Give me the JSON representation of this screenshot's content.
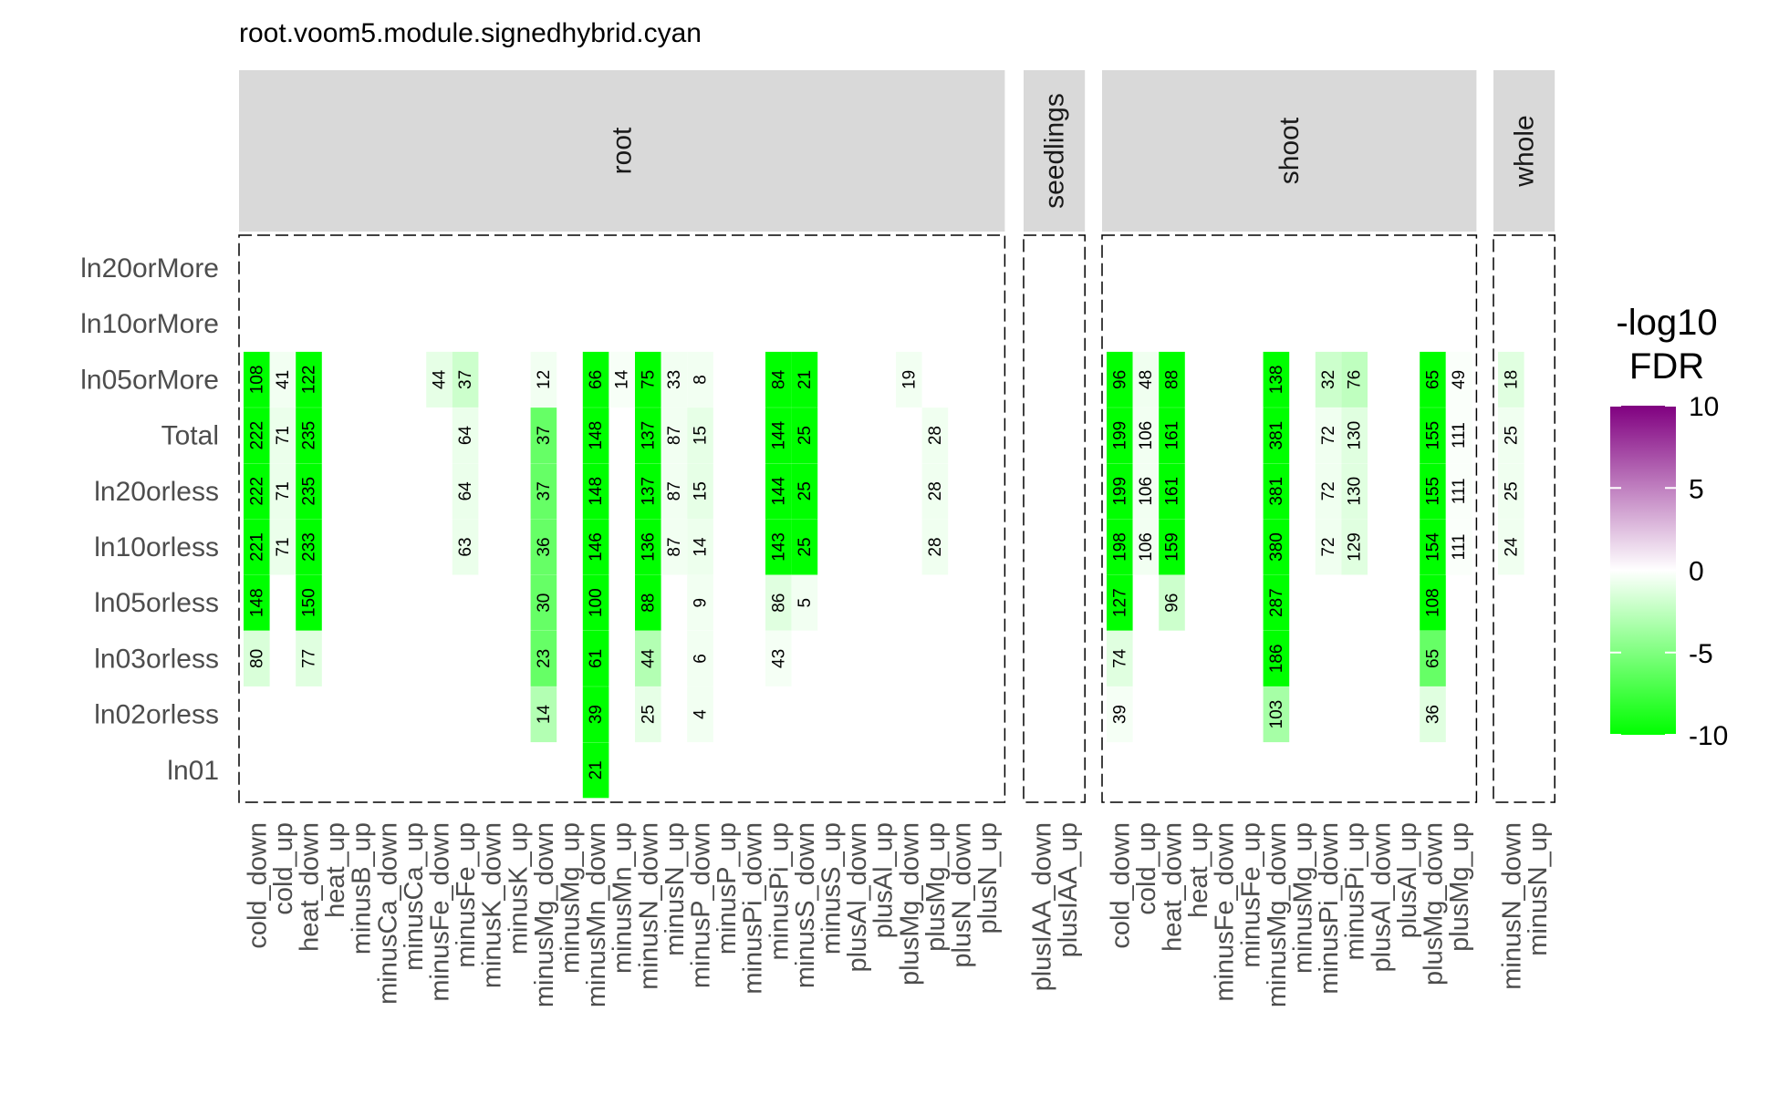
{
  "chart_data": {
    "type": "heatmap",
    "title": "root.voom5.module.signedhybrid.cyan",
    "rows": [
      "ln20orMore",
      "ln10orMore",
      "ln05orMore",
      "Total",
      "ln20orless",
      "ln10orless",
      "ln05orless",
      "ln03orless",
      "ln02orless",
      "ln01"
    ],
    "legend": {
      "title_line1": "-log10",
      "title_line2": "FDR",
      "range": [
        -10,
        10
      ],
      "ticks": [
        10,
        5,
        0,
        -5,
        -10
      ],
      "low_color": "#00ff00",
      "mid_color": "#ffffff",
      "high_color": "#800080"
    },
    "panels": [
      {
        "name": "root",
        "columns": [
          "cold_down",
          "cold_up",
          "heat_down",
          "heat_up",
          "minusB_up",
          "minusCa_down",
          "minusCa_up",
          "minusFe_down",
          "minusFe_up",
          "minusK_down",
          "minusK_up",
          "minusMg_down",
          "minusMg_up",
          "minusMn_down",
          "minusMn_up",
          "minusN_down",
          "minusN_up",
          "minusP_down",
          "minusP_up",
          "minusPi_down",
          "minusPi_up",
          "minusS_down",
          "minusS_up",
          "plusAl_down",
          "plusAl_up",
          "plusMg_down",
          "plusMg_up",
          "plusN_down",
          "plusN_up"
        ],
        "cells": [
          {
            "col": "cold_down",
            "row": "ln05orMore",
            "label": "108",
            "value": -10
          },
          {
            "col": "cold_down",
            "row": "Total",
            "label": "222",
            "value": -10
          },
          {
            "col": "cold_down",
            "row": "ln20orless",
            "label": "222",
            "value": -10
          },
          {
            "col": "cold_down",
            "row": "ln10orless",
            "label": "221",
            "value": -10
          },
          {
            "col": "cold_down",
            "row": "ln05orless",
            "label": "148",
            "value": -10
          },
          {
            "col": "cold_down",
            "row": "ln03orless",
            "label": "80",
            "value": -1.5
          },
          {
            "col": "cold_up",
            "row": "ln05orMore",
            "label": "41",
            "value": -0.5
          },
          {
            "col": "cold_up",
            "row": "Total",
            "label": "71",
            "value": -0.8
          },
          {
            "col": "cold_up",
            "row": "ln20orless",
            "label": "71",
            "value": -0.8
          },
          {
            "col": "cold_up",
            "row": "ln10orless",
            "label": "71",
            "value": -0.8
          },
          {
            "col": "heat_down",
            "row": "ln05orMore",
            "label": "122",
            "value": -10
          },
          {
            "col": "heat_down",
            "row": "Total",
            "label": "235",
            "value": -10
          },
          {
            "col": "heat_down",
            "row": "ln20orless",
            "label": "235",
            "value": -10
          },
          {
            "col": "heat_down",
            "row": "ln10orless",
            "label": "233",
            "value": -10
          },
          {
            "col": "heat_down",
            "row": "ln05orless",
            "label": "150",
            "value": -10
          },
          {
            "col": "heat_down",
            "row": "ln03orless",
            "label": "77",
            "value": -1.2
          },
          {
            "col": "minusFe_down",
            "row": "ln05orMore",
            "label": "44",
            "value": -1
          },
          {
            "col": "minusFe_up",
            "row": "ln05orMore",
            "label": "37",
            "value": -2
          },
          {
            "col": "minusFe_up",
            "row": "Total",
            "label": "64",
            "value": -0.8
          },
          {
            "col": "minusFe_up",
            "row": "ln20orless",
            "label": "64",
            "value": -0.8
          },
          {
            "col": "minusFe_up",
            "row": "ln10orless",
            "label": "63",
            "value": -0.8
          },
          {
            "col": "minusMg_down",
            "row": "ln05orMore",
            "label": "12",
            "value": -0.5
          },
          {
            "col": "minusMg_down",
            "row": "Total",
            "label": "37",
            "value": -6
          },
          {
            "col": "minusMg_down",
            "row": "ln20orless",
            "label": "37",
            "value": -6
          },
          {
            "col": "minusMg_down",
            "row": "ln10orless",
            "label": "36",
            "value": -6
          },
          {
            "col": "minusMg_down",
            "row": "ln05orless",
            "label": "30",
            "value": -6
          },
          {
            "col": "minusMg_down",
            "row": "ln03orless",
            "label": "23",
            "value": -6
          },
          {
            "col": "minusMg_down",
            "row": "ln02orless",
            "label": "14",
            "value": -3
          },
          {
            "col": "minusMn_down",
            "row": "ln05orMore",
            "label": "66",
            "value": -10
          },
          {
            "col": "minusMn_down",
            "row": "Total",
            "label": "148",
            "value": -10
          },
          {
            "col": "minusMn_down",
            "row": "ln20orless",
            "label": "148",
            "value": -10
          },
          {
            "col": "minusMn_down",
            "row": "ln10orless",
            "label": "146",
            "value": -10
          },
          {
            "col": "minusMn_down",
            "row": "ln05orless",
            "label": "100",
            "value": -10
          },
          {
            "col": "minusMn_down",
            "row": "ln03orless",
            "label": "61",
            "value": -10
          },
          {
            "col": "minusMn_down",
            "row": "ln02orless",
            "label": "39",
            "value": -10
          },
          {
            "col": "minusMn_down",
            "row": "ln01",
            "label": "21",
            "value": -10
          },
          {
            "col": "minusMn_up",
            "row": "ln05orMore",
            "label": "14",
            "value": -0.3
          },
          {
            "col": "minusN_down",
            "row": "ln05orMore",
            "label": "75",
            "value": -10
          },
          {
            "col": "minusN_down",
            "row": "Total",
            "label": "137",
            "value": -10
          },
          {
            "col": "minusN_down",
            "row": "ln20orless",
            "label": "137",
            "value": -10
          },
          {
            "col": "minusN_down",
            "row": "ln10orless",
            "label": "136",
            "value": -10
          },
          {
            "col": "minusN_down",
            "row": "ln05orless",
            "label": "88",
            "value": -10
          },
          {
            "col": "minusN_down",
            "row": "ln03orless",
            "label": "44",
            "value": -3
          },
          {
            "col": "minusN_down",
            "row": "ln02orless",
            "label": "25",
            "value": -1
          },
          {
            "col": "minusN_up",
            "row": "ln05orMore",
            "label": "33",
            "value": -0.5
          },
          {
            "col": "minusN_up",
            "row": "Total",
            "label": "87",
            "value": -0.5
          },
          {
            "col": "minusN_up",
            "row": "ln20orless",
            "label": "87",
            "value": -0.5
          },
          {
            "col": "minusN_up",
            "row": "ln10orless",
            "label": "87",
            "value": -0.5
          },
          {
            "col": "minusP_down",
            "row": "ln05orMore",
            "label": "8",
            "value": -0.5
          },
          {
            "col": "minusP_down",
            "row": "Total",
            "label": "15",
            "value": -1
          },
          {
            "col": "minusP_down",
            "row": "ln20orless",
            "label": "15",
            "value": -1
          },
          {
            "col": "minusP_down",
            "row": "ln10orless",
            "label": "14",
            "value": -0.7
          },
          {
            "col": "minusP_down",
            "row": "ln05orless",
            "label": "9",
            "value": -0.5
          },
          {
            "col": "minusP_down",
            "row": "ln03orless",
            "label": "6",
            "value": -0.5
          },
          {
            "col": "minusP_down",
            "row": "ln02orless",
            "label": "4",
            "value": -0.5
          },
          {
            "col": "minusPi_up",
            "row": "ln05orMore",
            "label": "84",
            "value": -10
          },
          {
            "col": "minusPi_up",
            "row": "Total",
            "label": "144",
            "value": -10
          },
          {
            "col": "minusPi_up",
            "row": "ln20orless",
            "label": "144",
            "value": -10
          },
          {
            "col": "minusPi_up",
            "row": "ln10orless",
            "label": "143",
            "value": -10
          },
          {
            "col": "minusPi_up",
            "row": "ln05orless",
            "label": "86",
            "value": -1.2
          },
          {
            "col": "minusPi_up",
            "row": "ln03orless",
            "label": "43",
            "value": -0.4
          },
          {
            "col": "minusS_down",
            "row": "ln05orMore",
            "label": "21",
            "value": -10
          },
          {
            "col": "minusS_down",
            "row": "Total",
            "label": "25",
            "value": -10
          },
          {
            "col": "minusS_down",
            "row": "ln20orless",
            "label": "25",
            "value": -10
          },
          {
            "col": "minusS_down",
            "row": "ln10orless",
            "label": "25",
            "value": -10
          },
          {
            "col": "minusS_down",
            "row": "ln05orless",
            "label": "5",
            "value": -0.5
          },
          {
            "col": "plusMg_down",
            "row": "ln05orMore",
            "label": "19",
            "value": -0.5
          },
          {
            "col": "plusMg_up",
            "row": "Total",
            "label": "28",
            "value": -0.6
          },
          {
            "col": "plusMg_up",
            "row": "ln20orless",
            "label": "28",
            "value": -0.6
          },
          {
            "col": "plusMg_up",
            "row": "ln10orless",
            "label": "28",
            "value": -0.6
          }
        ]
      },
      {
        "name": "seedlings",
        "columns": [
          "plusIAA_down",
          "plusIAA_up"
        ],
        "cells": []
      },
      {
        "name": "shoot",
        "columns": [
          "cold_down",
          "cold_up",
          "heat_down",
          "heat_up",
          "minusFe_down",
          "minusFe_up",
          "minusMg_down",
          "minusMg_up",
          "minusPi_down",
          "minusPi_up",
          "plusAl_down",
          "plusAl_up",
          "plusMg_down",
          "plusMg_up"
        ],
        "cells": [
          {
            "col": "cold_down",
            "row": "ln05orMore",
            "label": "96",
            "value": -10
          },
          {
            "col": "cold_down",
            "row": "Total",
            "label": "199",
            "value": -10
          },
          {
            "col": "cold_down",
            "row": "ln20orless",
            "label": "199",
            "value": -10
          },
          {
            "col": "cold_down",
            "row": "ln10orless",
            "label": "198",
            "value": -10
          },
          {
            "col": "cold_down",
            "row": "ln05orless",
            "label": "127",
            "value": -10
          },
          {
            "col": "cold_down",
            "row": "ln03orless",
            "label": "74",
            "value": -1.2
          },
          {
            "col": "cold_down",
            "row": "ln02orless",
            "label": "39",
            "value": -0.4
          },
          {
            "col": "cold_up",
            "row": "ln05orMore",
            "label": "48",
            "value": -0.6
          },
          {
            "col": "cold_up",
            "row": "Total",
            "label": "106",
            "value": -0.5
          },
          {
            "col": "cold_up",
            "row": "ln20orless",
            "label": "106",
            "value": -0.5
          },
          {
            "col": "cold_up",
            "row": "ln10orless",
            "label": "106",
            "value": -0.5
          },
          {
            "col": "heat_down",
            "row": "ln05orMore",
            "label": "88",
            "value": -10
          },
          {
            "col": "heat_down",
            "row": "Total",
            "label": "161",
            "value": -10
          },
          {
            "col": "heat_down",
            "row": "ln20orless",
            "label": "161",
            "value": -10
          },
          {
            "col": "heat_down",
            "row": "ln10orless",
            "label": "159",
            "value": -10
          },
          {
            "col": "heat_down",
            "row": "ln05orless",
            "label": "96",
            "value": -2
          },
          {
            "col": "minusMg_down",
            "row": "ln05orMore",
            "label": "138",
            "value": -10
          },
          {
            "col": "minusMg_down",
            "row": "Total",
            "label": "381",
            "value": -10
          },
          {
            "col": "minusMg_down",
            "row": "ln20orless",
            "label": "381",
            "value": -10
          },
          {
            "col": "minusMg_down",
            "row": "ln10orless",
            "label": "380",
            "value": -10
          },
          {
            "col": "minusMg_down",
            "row": "ln05orless",
            "label": "287",
            "value": -10
          },
          {
            "col": "minusMg_down",
            "row": "ln03orless",
            "label": "186",
            "value": -10
          },
          {
            "col": "minusMg_down",
            "row": "ln02orless",
            "label": "103",
            "value": -3.5
          },
          {
            "col": "minusPi_down",
            "row": "ln05orMore",
            "label": "32",
            "value": -2
          },
          {
            "col": "minusPi_down",
            "row": "Total",
            "label": "72",
            "value": -0.6
          },
          {
            "col": "minusPi_down",
            "row": "ln20orless",
            "label": "72",
            "value": -0.6
          },
          {
            "col": "minusPi_down",
            "row": "ln10orless",
            "label": "72",
            "value": -0.6
          },
          {
            "col": "minusPi_up",
            "row": "ln05orMore",
            "label": "76",
            "value": -2.5
          },
          {
            "col": "minusPi_up",
            "row": "Total",
            "label": "130",
            "value": -1.2
          },
          {
            "col": "minusPi_up",
            "row": "ln20orless",
            "label": "130",
            "value": -1.2
          },
          {
            "col": "minusPi_up",
            "row": "ln10orless",
            "label": "129",
            "value": -1.2
          },
          {
            "col": "plusMg_down",
            "row": "ln05orMore",
            "label": "65",
            "value": -10
          },
          {
            "col": "plusMg_down",
            "row": "Total",
            "label": "155",
            "value": -10
          },
          {
            "col": "plusMg_down",
            "row": "ln20orless",
            "label": "155",
            "value": -10
          },
          {
            "col": "plusMg_down",
            "row": "ln10orless",
            "label": "154",
            "value": -10
          },
          {
            "col": "plusMg_down",
            "row": "ln05orless",
            "label": "108",
            "value": -10
          },
          {
            "col": "plusMg_down",
            "row": "ln03orless",
            "label": "65",
            "value": -6
          },
          {
            "col": "plusMg_down",
            "row": "ln02orless",
            "label": "36",
            "value": -1.2
          },
          {
            "col": "plusMg_up",
            "row": "ln05orMore",
            "label": "49",
            "value": -0.2
          },
          {
            "col": "plusMg_up",
            "row": "Total",
            "label": "111",
            "value": -0.2
          },
          {
            "col": "plusMg_up",
            "row": "ln20orless",
            "label": "111",
            "value": -0.2
          },
          {
            "col": "plusMg_up",
            "row": "ln10orless",
            "label": "111",
            "value": -0.2
          }
        ]
      },
      {
        "name": "whole",
        "columns": [
          "minusN_down",
          "minusN_up"
        ],
        "cells": [
          {
            "col": "minusN_down",
            "row": "ln05orMore",
            "label": "18",
            "value": -1.2
          },
          {
            "col": "minusN_down",
            "row": "Total",
            "label": "25",
            "value": -0.6
          },
          {
            "col": "minusN_down",
            "row": "ln20orless",
            "label": "25",
            "value": -0.6
          },
          {
            "col": "minusN_down",
            "row": "ln10orless",
            "label": "24",
            "value": -0.6
          }
        ]
      }
    ]
  }
}
